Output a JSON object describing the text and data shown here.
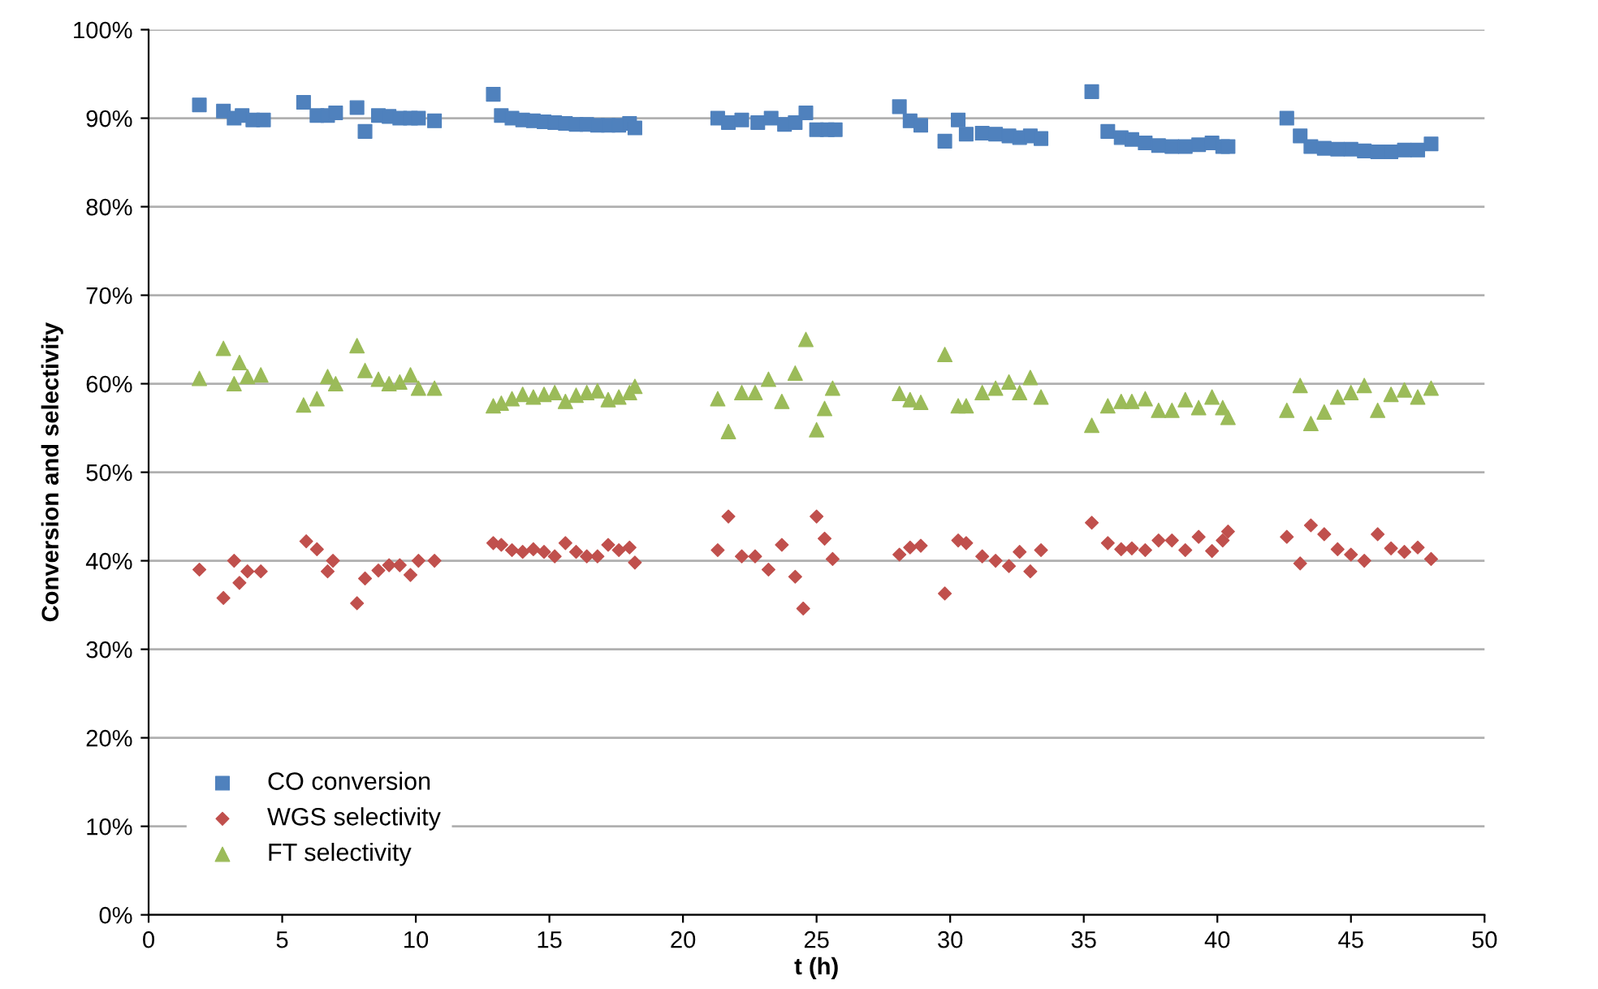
{
  "chart_data": {
    "type": "scatter",
    "xlabel": "t (h)",
    "ylabel": "Conversion and selectivity",
    "xlim": [
      0,
      50
    ],
    "xticks": [
      0,
      5,
      10,
      15,
      20,
      25,
      30,
      35,
      40,
      45,
      50
    ],
    "ylim": [
      0,
      100
    ],
    "yticks": [
      {
        "value": 0,
        "label": "0%"
      },
      {
        "value": 10,
        "label": "10%"
      },
      {
        "value": 20,
        "label": "20%"
      },
      {
        "value": 30,
        "label": "30%"
      },
      {
        "value": 40,
        "label": "40%"
      },
      {
        "value": 50,
        "label": "50%"
      },
      {
        "value": 60,
        "label": "60%"
      },
      {
        "value": 70,
        "label": "70%"
      },
      {
        "value": 80,
        "label": "80%"
      },
      {
        "value": 90,
        "label": "90%"
      },
      {
        "value": 100,
        "label": "100%"
      }
    ],
    "grid": "y",
    "legend": "bottom left",
    "series": [
      {
        "name": "CO conversion",
        "color": "#4f81bd",
        "marker": "square",
        "x": [
          1.9,
          2.8,
          3.2,
          3.5,
          3.9,
          4.3,
          5.8,
          6.3,
          6.7,
          7.0,
          7.8,
          8.1,
          8.6,
          9.0,
          9.4,
          9.8,
          10.1,
          10.7,
          12.9,
          13.2,
          13.6,
          14.0,
          14.4,
          14.8,
          15.2,
          15.6,
          16.0,
          16.4,
          16.8,
          17.2,
          17.6,
          18.0,
          18.2,
          21.3,
          21.7,
          22.2,
          22.8,
          23.3,
          23.8,
          24.2,
          24.6,
          25.0,
          25.4,
          25.7,
          28.1,
          28.5,
          28.9,
          29.8,
          30.3,
          30.6,
          31.2,
          31.7,
          32.2,
          32.6,
          33.0,
          33.4,
          35.3,
          35.9,
          36.4,
          36.8,
          37.3,
          37.8,
          38.3,
          38.8,
          39.3,
          39.8,
          40.2,
          40.4,
          42.6,
          43.1,
          43.5,
          44.0,
          44.5,
          45.0,
          45.5,
          46.0,
          46.5,
          47.0,
          47.5,
          48.0
        ],
        "values": [
          91.5,
          90.8,
          90,
          90.3,
          89.8,
          89.8,
          91.8,
          90.3,
          90.3,
          90.6,
          91.2,
          88.5,
          90.3,
          90.2,
          90,
          90,
          90,
          89.7,
          92.7,
          90.3,
          90,
          89.8,
          89.7,
          89.6,
          89.5,
          89.4,
          89.3,
          89.3,
          89.2,
          89.2,
          89.2,
          89.4,
          88.9,
          90,
          89.5,
          89.8,
          89.5,
          90,
          89.3,
          89.5,
          90.6,
          88.7,
          88.7,
          88.7,
          91.3,
          89.7,
          89.2,
          87.4,
          89.8,
          88.2,
          88.3,
          88.2,
          88,
          87.8,
          88,
          87.7,
          93,
          88.5,
          87.8,
          87.6,
          87.2,
          86.9,
          86.8,
          86.8,
          87,
          87.2,
          86.8,
          86.8,
          90,
          88,
          86.8,
          86.6,
          86.5,
          86.5,
          86.3,
          86.2,
          86.2,
          86.4,
          86.4,
          87.1
        ]
      },
      {
        "name": "WGS selectivity",
        "color": "#c0504d",
        "marker": "diamond",
        "x": [
          1.9,
          2.8,
          3.2,
          3.4,
          3.7,
          4.2,
          5.9,
          6.3,
          6.7,
          6.9,
          7.8,
          8.1,
          8.6,
          9.0,
          9.4,
          9.8,
          10.1,
          10.7,
          12.9,
          13.2,
          13.6,
          14.0,
          14.4,
          14.8,
          15.2,
          15.6,
          16.0,
          16.4,
          16.8,
          17.2,
          17.6,
          18.0,
          18.2,
          21.3,
          21.7,
          22.2,
          22.7,
          23.2,
          23.7,
          24.2,
          24.5,
          25.0,
          25.3,
          25.6,
          28.1,
          28.5,
          28.9,
          29.8,
          30.3,
          30.6,
          31.2,
          31.7,
          32.2,
          32.6,
          33.0,
          33.4,
          35.3,
          35.9,
          36.4,
          36.8,
          37.3,
          37.8,
          38.3,
          38.8,
          39.3,
          39.8,
          40.2,
          40.4,
          42.6,
          43.1,
          43.5,
          44.0,
          44.5,
          45.0,
          45.5,
          46.0,
          46.5,
          47.0,
          47.5,
          48.0
        ],
        "values": [
          39,
          35.8,
          40,
          37.5,
          38.8,
          38.8,
          42.2,
          41.3,
          38.8,
          40,
          35.2,
          38,
          38.9,
          39.5,
          39.5,
          38.4,
          40,
          40,
          42,
          41.8,
          41.2,
          41,
          41.3,
          41,
          40.5,
          42,
          41,
          40.5,
          40.5,
          41.8,
          41.2,
          41.5,
          39.8,
          41.2,
          45,
          40.5,
          40.5,
          39,
          41.8,
          38.2,
          34.6,
          45,
          42.5,
          40.2,
          40.7,
          41.5,
          41.7,
          36.3,
          42.3,
          42,
          40.5,
          40,
          39.4,
          41,
          38.8,
          41.2,
          44.3,
          42,
          41.3,
          41.4,
          41.2,
          42.3,
          42.3,
          41.2,
          42.7,
          41.1,
          42.3,
          43.3,
          42.7,
          39.7,
          44,
          43,
          41.3,
          40.7,
          40,
          43,
          41.4,
          41,
          41.5,
          40.2
        ]
      },
      {
        "name": "FT selectivity",
        "color": "#9bbb59",
        "marker": "triangle",
        "x": [
          1.9,
          2.8,
          3.2,
          3.4,
          3.7,
          4.2,
          5.8,
          6.3,
          6.7,
          7.0,
          7.8,
          8.1,
          8.6,
          9.0,
          9.4,
          9.8,
          10.1,
          10.7,
          12.9,
          13.2,
          13.6,
          14.0,
          14.4,
          14.8,
          15.2,
          15.6,
          16.0,
          16.4,
          16.8,
          17.2,
          17.6,
          18.0,
          18.2,
          21.3,
          21.7,
          22.2,
          22.7,
          23.2,
          23.7,
          24.2,
          24.6,
          25.0,
          25.3,
          25.6,
          28.1,
          28.5,
          28.9,
          29.8,
          30.3,
          30.6,
          31.2,
          31.7,
          32.2,
          32.6,
          33.0,
          33.4,
          35.3,
          35.9,
          36.4,
          36.8,
          37.3,
          37.8,
          38.3,
          38.8,
          39.3,
          39.8,
          40.2,
          40.4,
          42.6,
          43.1,
          43.5,
          44.0,
          44.5,
          45.0,
          45.5,
          46.0,
          46.5,
          47.0,
          47.5,
          48.0
        ],
        "values": [
          60.6,
          64,
          60,
          62.4,
          60.8,
          61,
          57.6,
          58.3,
          60.8,
          60,
          64.3,
          61.5,
          60.5,
          60,
          60.2,
          61,
          59.5,
          59.5,
          57.5,
          57.8,
          58.3,
          58.8,
          58.5,
          58.8,
          59,
          58,
          58.7,
          59,
          59.2,
          58.2,
          58.5,
          59,
          59.7,
          58.3,
          54.6,
          59,
          59,
          60.5,
          58,
          61.2,
          65,
          54.8,
          57.2,
          59.5,
          58.9,
          58.2,
          57.9,
          63.3,
          57.5,
          57.5,
          59,
          59.5,
          60.2,
          59,
          60.7,
          58.5,
          55.3,
          57.5,
          58,
          58,
          58.3,
          57,
          57,
          58.2,
          57.3,
          58.5,
          57.3,
          56.2,
          57,
          59.8,
          55.5,
          56.8,
          58.5,
          59,
          59.8,
          57,
          58.8,
          59.3,
          58.5,
          59.5
        ]
      }
    ]
  }
}
